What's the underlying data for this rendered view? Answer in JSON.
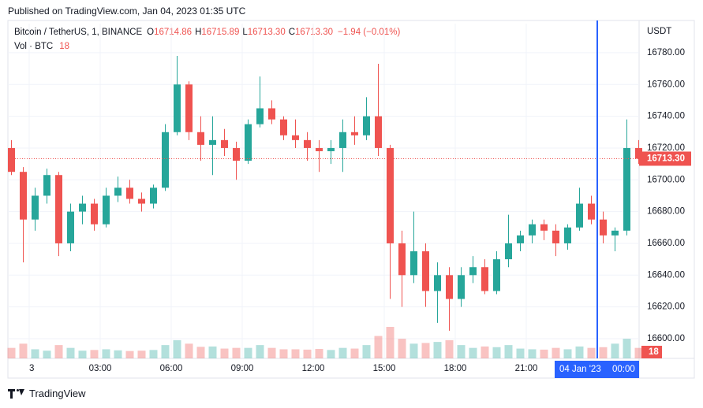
{
  "header": {
    "published": "Published on TradingView.com, Jan 04, 2023 01:35 UTC",
    "symbol": "Bitcoin / TetherUS, 1, BINANCE",
    "ohlc": [
      {
        "key": "O",
        "value": "16714.86"
      },
      {
        "key": "H",
        "value": "16715.89"
      },
      {
        "key": "L",
        "value": "16713.30"
      },
      {
        "key": "C",
        "value": "16713.30"
      }
    ],
    "change": "−1.94 (−0.01%)",
    "volume_label": "Vol · BTC",
    "volume_value": "18"
  },
  "footer": {
    "brand": "TradingView"
  },
  "chart_data": {
    "type": "candlestick",
    "currency": "USDT",
    "categories": [
      null,
      null,
      "3",
      null,
      null,
      null,
      null,
      null,
      "03:00",
      null,
      null,
      null,
      null,
      null,
      "06:00",
      null,
      null,
      null,
      null,
      null,
      "09:00",
      null,
      null,
      null,
      null,
      null,
      "12:00",
      null,
      null,
      null,
      null,
      null,
      "15:00",
      null,
      null,
      null,
      null,
      null,
      "18:00",
      null,
      null,
      null,
      null,
      null,
      "21:00",
      null,
      null,
      null,
      null,
      null,
      "00:00",
      null,
      null,
      null
    ],
    "open": [
      16720,
      16705,
      16675,
      16690,
      16703,
      16660,
      16680,
      16685,
      16672,
      16690,
      16695,
      16688,
      16685,
      16695,
      16730,
      16760,
      16730,
      16722,
      16725,
      16720,
      16712,
      16735,
      16745,
      16738,
      16728,
      16725,
      16720,
      16718,
      16720,
      16730,
      16728,
      16740,
      16720,
      16660,
      16640,
      16655,
      16630,
      16640,
      16625,
      16640,
      16645,
      16630,
      16650,
      16660,
      16665,
      16672,
      16668,
      16660,
      16670,
      16685,
      16675,
      16665,
      16668,
      16720
    ],
    "high": [
      16725,
      16708,
      16695,
      16707,
      16705,
      16685,
      16690,
      16688,
      16695,
      16702,
      16700,
      16692,
      16697,
      16735,
      16778,
      16762,
      16740,
      16740,
      16732,
      16724,
      16738,
      16765,
      16750,
      16740,
      16738,
      16730,
      16725,
      16725,
      16738,
      16740,
      16752,
      16773,
      16722,
      16668,
      16680,
      16660,
      16648,
      16645,
      16645,
      16652,
      16650,
      16655,
      16678,
      16668,
      16675,
      16675,
      16672,
      16672,
      16695,
      16690,
      16680,
      16670,
      16738,
      16725
    ],
    "low": [
      16703,
      16648,
      16668,
      16685,
      16652,
      16655,
      16672,
      16668,
      16670,
      16686,
      16685,
      16680,
      16682,
      16693,
      16728,
      16725,
      16712,
      16703,
      16715,
      16700,
      16710,
      16733,
      16735,
      16725,
      16720,
      16712,
      16705,
      16710,
      16705,
      16722,
      16725,
      16715,
      16625,
      16620,
      16635,
      16620,
      16610,
      16605,
      16620,
      16635,
      16628,
      16628,
      16645,
      16655,
      16660,
      16662,
      16652,
      16656,
      16668,
      16672,
      16660,
      16655,
      16665,
      16710
    ],
    "close": [
      16705,
      16675,
      16690,
      16703,
      16660,
      16680,
      16685,
      16672,
      16690,
      16695,
      16688,
      16685,
      16695,
      16730,
      16760,
      16730,
      16722,
      16725,
      16720,
      16712,
      16735,
      16745,
      16738,
      16728,
      16725,
      16720,
      16718,
      16720,
      16730,
      16728,
      16740,
      16720,
      16660,
      16640,
      16655,
      16630,
      16640,
      16625,
      16640,
      16645,
      16630,
      16650,
      16660,
      16665,
      16672,
      16668,
      16660,
      16670,
      16685,
      16675,
      16665,
      16668,
      16720,
      16713.3
    ],
    "volume": [
      300,
      420,
      260,
      220,
      380,
      300,
      220,
      240,
      260,
      230,
      210,
      220,
      240,
      380,
      520,
      420,
      330,
      340,
      280,
      300,
      300,
      380,
      300,
      260,
      260,
      250,
      270,
      240,
      300,
      280,
      380,
      640,
      900,
      560,
      420,
      440,
      470,
      520,
      380,
      300,
      340,
      320,
      380,
      280,
      260,
      250,
      300,
      260,
      340,
      300,
      320,
      420,
      560,
      300
    ],
    "up_color": "#26a69a",
    "down_color": "#ef5350",
    "ylim": [
      16587.6,
      16798.3
    ],
    "yticks": [
      {
        "value": 16600,
        "label": "16600.00"
      },
      {
        "value": 16620,
        "label": "16620.00"
      },
      {
        "value": 16640,
        "label": "16640.00"
      },
      {
        "value": 16660,
        "label": "16660.00"
      },
      {
        "value": 16680,
        "label": "16680.00"
      },
      {
        "value": 16700,
        "label": "16700.00"
      },
      {
        "value": 16720,
        "label": "16720.00"
      },
      {
        "value": 16740,
        "label": "16740.00"
      },
      {
        "value": 16760,
        "label": "16760.00"
      },
      {
        "value": 16780,
        "label": "16780.00"
      }
    ],
    "last_price": {
      "value": 16713.3,
      "label": "16713.30"
    },
    "crosshair_label": "04 Jan '23",
    "grid": true
  }
}
